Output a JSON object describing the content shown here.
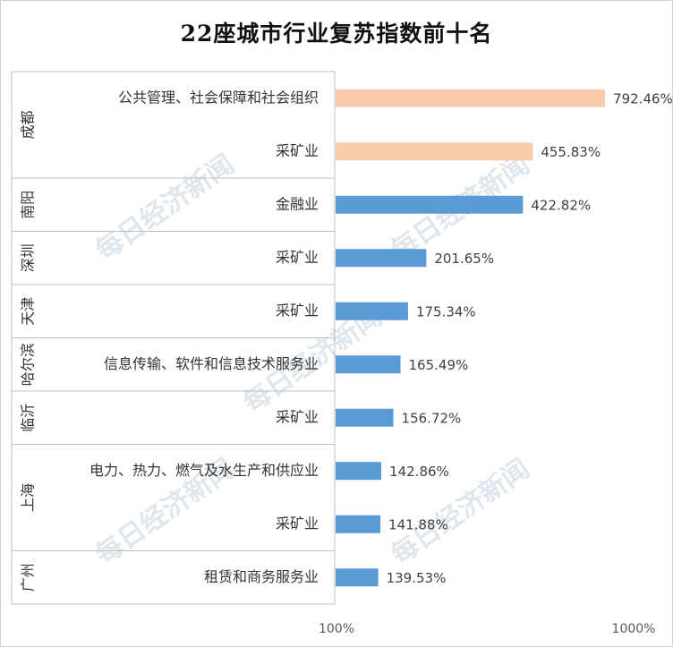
{
  "chart_data": {
    "type": "bar",
    "orientation": "horizontal",
    "title": "22座城市行业复苏指数前十名",
    "watermark": "每日经济新闻",
    "xaxis": {
      "scale": "log",
      "range": [
        100,
        1000
      ],
      "tick_labels": [
        "100%",
        "1000%"
      ]
    },
    "colors": {
      "highlight": "#f8cbad",
      "default": "#5b9bd5"
    },
    "groups": [
      {
        "city": "成都",
        "items": [
          {
            "industry": "公共管理、社会保障和社会组织",
            "value": 792.46,
            "label": "792.46%",
            "highlight": true
          },
          {
            "industry": "采矿业",
            "value": 455.83,
            "label": "455.83%",
            "highlight": true
          }
        ]
      },
      {
        "city": "南阳",
        "items": [
          {
            "industry": "金融业",
            "value": 422.82,
            "label": "422.82%",
            "highlight": false
          }
        ]
      },
      {
        "city": "深圳",
        "items": [
          {
            "industry": "采矿业",
            "value": 201.65,
            "label": "201.65%",
            "highlight": false
          }
        ]
      },
      {
        "city": "天津",
        "items": [
          {
            "industry": "采矿业",
            "value": 175.34,
            "label": "175.34%",
            "highlight": false
          }
        ]
      },
      {
        "city": "哈尔滨",
        "items": [
          {
            "industry": "信息传输、软件和信息技术服务业",
            "value": 165.49,
            "label": "165.49%",
            "highlight": false
          }
        ]
      },
      {
        "city": "临沂",
        "items": [
          {
            "industry": "采矿业",
            "value": 156.72,
            "label": "156.72%",
            "highlight": false
          }
        ]
      },
      {
        "city": "上海",
        "items": [
          {
            "industry": "电力、热力、燃气及水生产和供应业",
            "value": 142.86,
            "label": "142.86%",
            "highlight": false
          },
          {
            "industry": "采矿业",
            "value": 141.88,
            "label": "141.88%",
            "highlight": false
          }
        ]
      },
      {
        "city": "广州",
        "items": [
          {
            "industry": "租赁和商务服务业",
            "value": 139.53,
            "label": "139.53%",
            "highlight": false
          }
        ]
      }
    ]
  }
}
